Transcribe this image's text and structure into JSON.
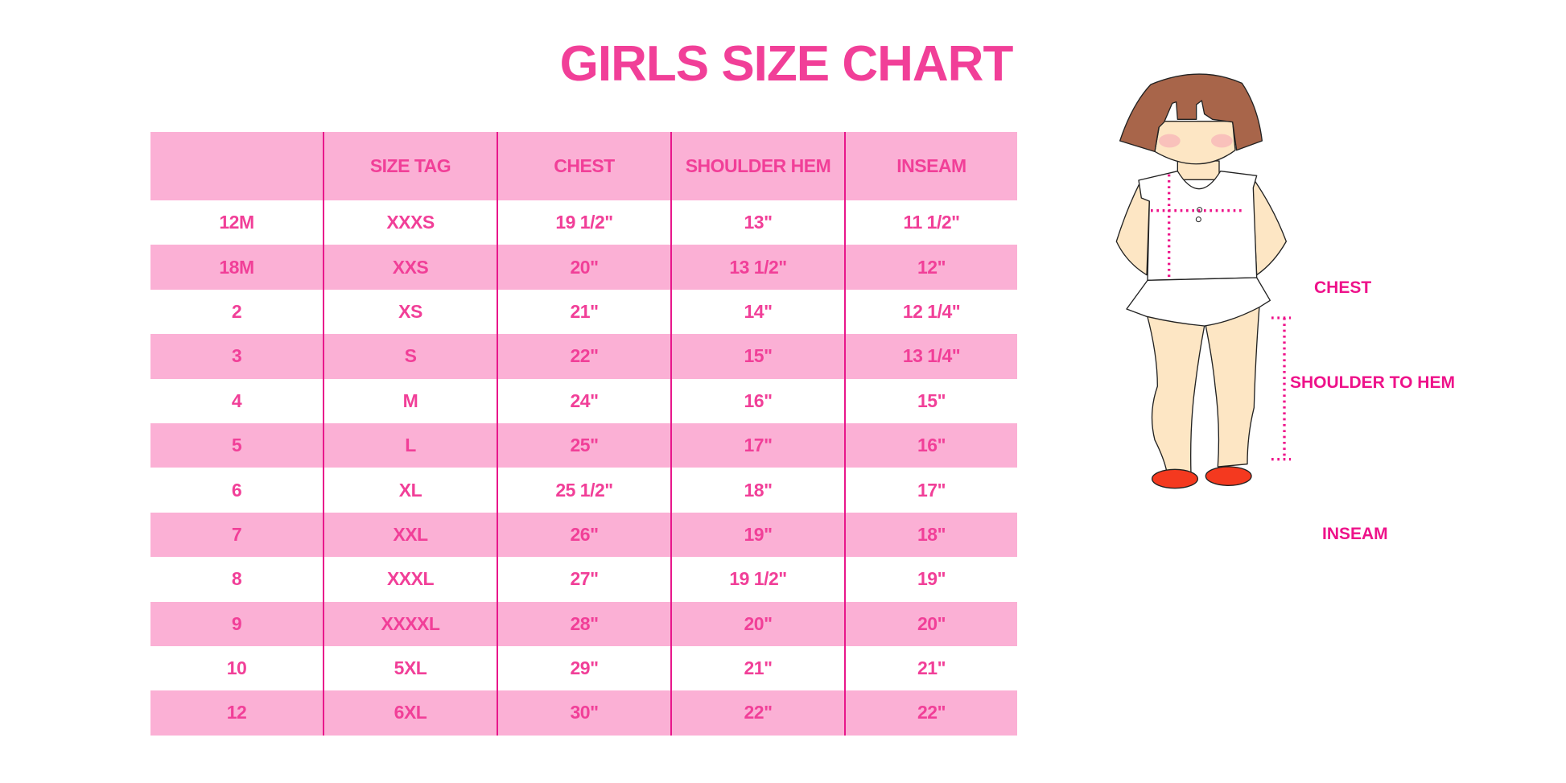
{
  "title": "GIRLS SIZE CHART",
  "colors": {
    "accent": "#f13f98",
    "row_pink": "#fbb0d5",
    "divider": "#e8178b",
    "hair": "#a8654a",
    "skin": "#fde6c4",
    "shoes": "#f4391f"
  },
  "table": {
    "headers": [
      "",
      "SIZE TAG",
      "CHEST",
      "SHOULDER HEM",
      "INSEAM"
    ],
    "rows": [
      [
        "12M",
        "XXXS",
        "19 1/2\"",
        "13\"",
        "11 1/2\""
      ],
      [
        "18M",
        "XXS",
        "20\"",
        "13 1/2\"",
        "12\""
      ],
      [
        "2",
        "XS",
        "21\"",
        "14\"",
        "12 1/4\""
      ],
      [
        "3",
        "S",
        "22\"",
        "15\"",
        "13 1/4\""
      ],
      [
        "4",
        "M",
        "24\"",
        "16\"",
        "15\""
      ],
      [
        "5",
        "L",
        "25\"",
        "17\"",
        "16\""
      ],
      [
        "6",
        "XL",
        "25 1/2\"",
        "18\"",
        "17\""
      ],
      [
        "7",
        "XXL",
        "26\"",
        "19\"",
        "18\""
      ],
      [
        "8",
        "XXXL",
        "27\"",
        "19 1/2\"",
        "19\""
      ],
      [
        "9",
        "XXXXL",
        "28\"",
        "20\"",
        "20\""
      ],
      [
        "10",
        "5XL",
        "29\"",
        "21\"",
        "21\""
      ],
      [
        "12",
        "6XL",
        "30\"",
        "22\"",
        "22\""
      ]
    ]
  },
  "figure": {
    "labels": {
      "chest": "CHEST",
      "shoulder_to_hem": "SHOULDER TO HEM",
      "inseam": "INSEAM"
    }
  }
}
